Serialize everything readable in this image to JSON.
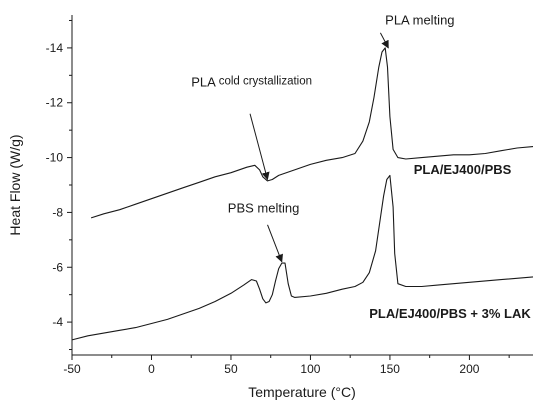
{
  "chart_data": {
    "type": "line",
    "xlabel": "Temperature (°C)",
    "ylabel": "Heat Flow (W/g)",
    "xlim": [
      -50,
      240
    ],
    "ylim": [
      -2.8,
      -15.2
    ],
    "y_axis_inverted": true,
    "x_ticks": [
      -50,
      0,
      50,
      100,
      150,
      200
    ],
    "y_ticks": [
      -4,
      -6,
      -8,
      -10,
      -12,
      -14
    ],
    "grid": false,
    "series": [
      {
        "name": "PLA/EJ400/PBS",
        "x": [
          -38,
          -30,
          -20,
          -10,
          0,
          10,
          20,
          30,
          40,
          50,
          60,
          65,
          68,
          70,
          73,
          76,
          80,
          90,
          100,
          110,
          120,
          128,
          133,
          137,
          140,
          143,
          145,
          147,
          148.5,
          150,
          152,
          155,
          160,
          170,
          180,
          190,
          200,
          210,
          220,
          230,
          240
        ],
        "y": [
          -7.8,
          -7.95,
          -8.1,
          -8.3,
          -8.5,
          -8.7,
          -8.9,
          -9.1,
          -9.3,
          -9.45,
          -9.65,
          -9.72,
          -9.55,
          -9.3,
          -9.15,
          -9.2,
          -9.35,
          -9.55,
          -9.75,
          -9.9,
          -10.0,
          -10.15,
          -10.6,
          -11.3,
          -12.2,
          -13.3,
          -13.85,
          -14.0,
          -13.3,
          -11.5,
          -10.3,
          -10.0,
          -9.95,
          -10.0,
          -10.05,
          -10.1,
          -10.1,
          -10.15,
          -10.25,
          -10.35,
          -10.4
        ]
      },
      {
        "name": "PLA/EJ400/PBS + 3% LAK",
        "x": [
          -50,
          -40,
          -30,
          -20,
          -10,
          0,
          10,
          20,
          30,
          40,
          50,
          58,
          63,
          66,
          68,
          70,
          72,
          74,
          76,
          78,
          80,
          82,
          84,
          86,
          88,
          90,
          100,
          110,
          120,
          128,
          133,
          137,
          141,
          144,
          146,
          148,
          150,
          152,
          153,
          155,
          160,
          170,
          180,
          200,
          220,
          240
        ],
        "y": [
          -3.35,
          -3.5,
          -3.6,
          -3.7,
          -3.8,
          -3.95,
          -4.1,
          -4.3,
          -4.5,
          -4.75,
          -5.05,
          -5.35,
          -5.55,
          -5.5,
          -5.2,
          -4.85,
          -4.7,
          -4.75,
          -5.0,
          -5.5,
          -5.95,
          -6.15,
          -6.15,
          -5.4,
          -4.95,
          -4.9,
          -4.95,
          -5.05,
          -5.2,
          -5.3,
          -5.45,
          -5.8,
          -6.6,
          -7.8,
          -8.6,
          -9.2,
          -9.35,
          -8.2,
          -6.5,
          -5.4,
          -5.3,
          -5.3,
          -5.35,
          -5.45,
          -5.55,
          -5.65
        ]
      }
    ],
    "annotations": [
      {
        "text": "PLA melting",
        "x": 147,
        "y": -14.85,
        "arrow_to": [
          149,
          -14.0
        ]
      },
      {
        "text_main": "PLA",
        "text_small": "cold crystallization",
        "x": 25,
        "y": -12.6,
        "arrow_to": [
          73,
          -9.2
        ]
      },
      {
        "text": "PBS melting",
        "x": 48,
        "y": -8.0,
        "arrow_to": [
          82,
          -6.2
        ]
      }
    ],
    "series_labels": [
      {
        "text": "PLA/EJ400/PBS",
        "x": 165,
        "y": -9.4
      },
      {
        "text": "PLA/EJ400/PBS + 3% LAK",
        "x": 137,
        "y": -4.15
      }
    ]
  }
}
